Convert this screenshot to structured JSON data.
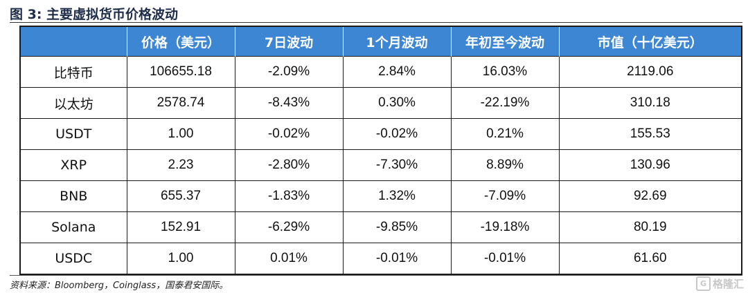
{
  "title": "图 3:  主要虚拟货币价格波动",
  "headers": [
    "",
    "价格（美元）",
    "7日波动",
    "1个月波动",
    "年初至今波动",
    "市值（十亿美元）"
  ],
  "rows": [
    {
      "name": "比特币",
      "price": "106655.18",
      "d7": "-2.09%",
      "m1": "2.84%",
      "ytd": "16.03%",
      "cap": "2119.06"
    },
    {
      "name": "以太坊",
      "price": "2578.74",
      "d7": "-8.43%",
      "m1": "0.30%",
      "ytd": "-22.19%",
      "cap": "310.18"
    },
    {
      "name": "USDT",
      "price": "1.00",
      "d7": "-0.02%",
      "m1": "-0.02%",
      "ytd": "0.21%",
      "cap": "155.53"
    },
    {
      "name": "XRP",
      "price": "2.23",
      "d7": "-2.80%",
      "m1": "-7.30%",
      "ytd": "8.89%",
      "cap": "130.96"
    },
    {
      "name": "BNB",
      "price": "655.37",
      "d7": "-1.83%",
      "m1": "1.32%",
      "ytd": "-7.09%",
      "cap": "92.69"
    },
    {
      "name": "Solana",
      "price": "152.91",
      "d7": "-6.29%",
      "m1": "-9.85%",
      "ytd": "-19.18%",
      "cap": "80.19"
    },
    {
      "name": "USDC",
      "price": "1.00",
      "d7": "0.01%",
      "m1": "-0.01%",
      "ytd": "-0.01%",
      "cap": "61.60"
    }
  ],
  "source": "资料来源：Bloomberg，Coinglass，国泰君安国际。",
  "watermark": {
    "icon": "G",
    "text": "格隆汇"
  }
}
